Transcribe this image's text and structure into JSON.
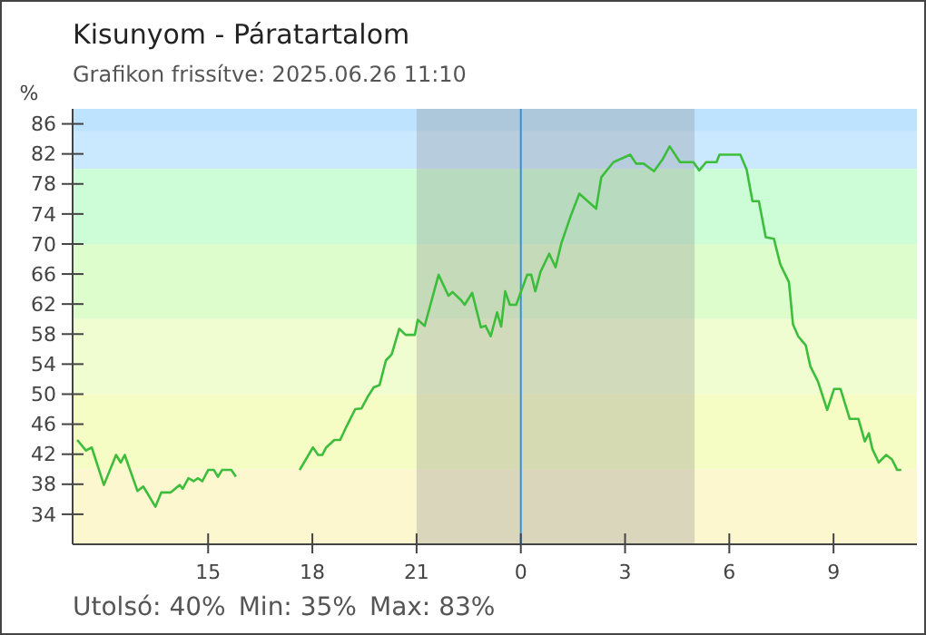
{
  "chart_data": {
    "type": "line",
    "title": "Kisunyom - Páratartalom",
    "subtitle": "Grafikon frissítve: 2025.06.26 11:10",
    "ylabel": "%",
    "annotations": [
      "Utolsó: 40%",
      "Min: 35%",
      "Max: 83%"
    ],
    "x": [
      "2025-06-25T11:14",
      "2025-06-25T11:29",
      "2025-06-25T11:39",
      "2025-06-25T12:00",
      "2025-06-25T12:21",
      "2025-06-25T12:29",
      "2025-06-25T12:36",
      "2025-06-25T12:58",
      "2025-06-25T13:08",
      "2025-06-25T13:29",
      "2025-06-25T13:39",
      "2025-06-25T13:55",
      "2025-06-25T14:11",
      "2025-06-25T14:16",
      "2025-06-25T14:26",
      "2025-06-25T14:35",
      "2025-06-25T14:42",
      "2025-06-25T14:50",
      "2025-06-25T15:00",
      "2025-06-25T15:10",
      "2025-06-25T15:17",
      "2025-06-25T15:24",
      "2025-06-25T15:40",
      "2025-06-25T15:48",
      "2025-06-25T16:42",
      "2025-06-25T17:38",
      "2025-06-25T18:01",
      "2025-06-25T18:10",
      "2025-06-25T18:17",
      "2025-06-25T18:24",
      "2025-06-25T18:38",
      "2025-06-25T18:48",
      "2025-06-25T18:59",
      "2025-06-25T19:14",
      "2025-06-25T19:25",
      "2025-06-25T19:36",
      "2025-06-25T19:46",
      "2025-06-25T19:56",
      "2025-06-25T20:07",
      "2025-06-25T20:17",
      "2025-06-25T20:30",
      "2025-06-25T20:41",
      "2025-06-25T20:57",
      "2025-06-25T21:02",
      "2025-06-25T21:14",
      "2025-06-25T21:38",
      "2025-06-25T21:55",
      "2025-06-25T22:02",
      "2025-06-25T22:17",
      "2025-06-25T22:23",
      "2025-06-25T22:36",
      "2025-06-25T22:51",
      "2025-06-25T22:59",
      "2025-06-25T23:08",
      "2025-06-25T23:19",
      "2025-06-25T23:26",
      "2025-06-25T23:33",
      "2025-06-25T23:41",
      "2025-06-25T23:52",
      "2025-06-26T00:11",
      "2025-06-26T00:18",
      "2025-06-26T00:25",
      "2025-06-26T00:34",
      "2025-06-26T00:49",
      "2025-06-26T01:00",
      "2025-06-26T01:10",
      "2025-06-26T01:26",
      "2025-06-26T01:41",
      "2025-06-26T02:10",
      "2025-06-26T02:19",
      "2025-06-26T02:40",
      "2025-06-26T03:09",
      "2025-06-26T03:19",
      "2025-06-26T03:32",
      "2025-06-26T03:50",
      "2025-06-26T04:05",
      "2025-06-26T04:17",
      "2025-06-26T04:35",
      "2025-06-26T04:58",
      "2025-06-26T05:08",
      "2025-06-26T05:20",
      "2025-06-26T05:38",
      "2025-06-26T05:43",
      "2025-06-26T06:19",
      "2025-06-26T06:30",
      "2025-06-26T06:40",
      "2025-06-26T06:51",
      "2025-06-26T07:03",
      "2025-06-26T07:17",
      "2025-06-26T07:28",
      "2025-06-26T07:43",
      "2025-06-26T07:50",
      "2025-06-26T07:59",
      "2025-06-26T08:12",
      "2025-06-26T08:20",
      "2025-06-26T08:33",
      "2025-06-26T08:49",
      "2025-06-26T09:01",
      "2025-06-26T09:12",
      "2025-06-26T09:28",
      "2025-06-26T09:43",
      "2025-06-26T09:54",
      "2025-06-26T10:01",
      "2025-06-26T10:07",
      "2025-06-26T10:18",
      "2025-06-26T10:31",
      "2025-06-26T10:41",
      "2025-06-26T10:50",
      "2025-06-26T10:57"
    ],
    "series": [
      {
        "color": "#3cbe3c",
        "values": [
          43.9,
          42.5,
          42.9,
          37.9,
          41.9,
          40.9,
          41.9,
          37.1,
          37.7,
          35,
          36.9,
          36.9,
          37.9,
          37.4,
          38.8,
          38.4,
          38.8,
          38.4,
          39.9,
          39.9,
          39,
          39.9,
          39.9,
          39,
          null,
          39.9,
          42.9,
          41.9,
          41.9,
          42.9,
          43.9,
          43.9,
          45.7,
          48,
          48.1,
          49.7,
          50.9,
          51.2,
          54.5,
          55.3,
          58.7,
          57.9,
          57.9,
          59.9,
          59.1,
          65.9,
          63.1,
          63.6,
          62.5,
          61.9,
          63.5,
          58.9,
          59.1,
          57.7,
          60.9,
          59,
          63.7,
          61.9,
          61.9,
          65.9,
          65.9,
          63.7,
          66.3,
          68.7,
          66.9,
          70.1,
          73.7,
          76.7,
          74.7,
          78.9,
          80.9,
          81.9,
          80.7,
          80.7,
          79.7,
          81.3,
          83,
          80.9,
          80.9,
          79.8,
          80.9,
          80.9,
          81.9,
          81.9,
          79.9,
          75.7,
          75.7,
          70.9,
          70.7,
          67.3,
          64.9,
          59.3,
          57.7,
          56.5,
          53.7,
          51.7,
          47.9,
          50.7,
          50.7,
          46.7,
          46.7,
          43.7,
          44.8,
          42.7,
          40.9,
          41.9,
          41.3,
          39.9,
          39.9
        ]
      }
    ],
    "xlim": [
      "2025-06-25T11:06",
      "2025-06-26T11:24"
    ],
    "xticks": [
      {
        "value": "2025-06-25T15:00",
        "label": "15"
      },
      {
        "value": "2025-06-25T18:00",
        "label": "18"
      },
      {
        "value": "2025-06-25T21:00",
        "label": "21"
      },
      {
        "value": "2025-06-26T00:00",
        "label": "0"
      },
      {
        "value": "2025-06-26T03:00",
        "label": "3"
      },
      {
        "value": "2025-06-26T06:00",
        "label": "6"
      },
      {
        "value": "2025-06-26T09:00",
        "label": "9"
      }
    ],
    "ylim": [
      30,
      88
    ],
    "yticks": [
      34,
      38,
      42,
      46,
      50,
      54,
      58,
      62,
      66,
      70,
      74,
      78,
      82,
      86
    ],
    "bands": [
      {
        "axis": "y",
        "from": 85,
        "to": 88,
        "color": "#bde3fe"
      },
      {
        "axis": "y",
        "from": 80,
        "to": 85,
        "color": "#cae9ff"
      },
      {
        "axis": "y",
        "from": 70,
        "to": 80,
        "color": "#ccfdd6"
      },
      {
        "axis": "y",
        "from": 60,
        "to": 70,
        "color": "#ddfdcc"
      },
      {
        "axis": "y",
        "from": 50,
        "to": 60,
        "color": "#effdd0"
      },
      {
        "axis": "y",
        "from": 40,
        "to": 50,
        "color": "#f5fcc4"
      },
      {
        "axis": "y",
        "from": 30,
        "to": 40,
        "color": "#fdf7d0"
      },
      {
        "axis": "x",
        "from": "2025-06-25T21:00",
        "to": "2025-06-26T05:00",
        "color": "#8c8c8c"
      }
    ],
    "ref_lines": [
      {
        "axis": "x",
        "value": "2025-06-26T00:00",
        "color": "#3a8fd0"
      }
    ],
    "grid": false,
    "marker": "none",
    "line_style": "solid"
  }
}
